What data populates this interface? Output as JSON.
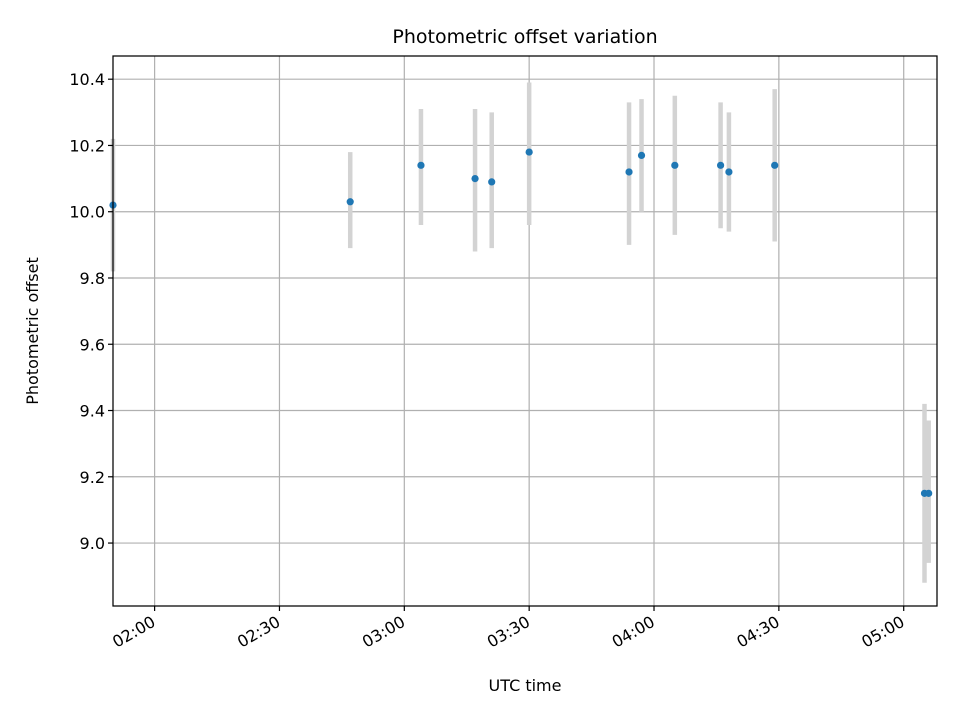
{
  "chart_data": {
    "type": "scatter",
    "title": "Photometric offset variation",
    "xlabel": "UTC time",
    "ylabel": "Photometric offset",
    "x_axis_type": "time",
    "xlim": [
      "01:50",
      "05:08"
    ],
    "ylim": [
      8.81,
      10.47
    ],
    "x_ticks": [
      "02:00",
      "02:30",
      "03:00",
      "03:30",
      "04:00",
      "04:30",
      "05:00"
    ],
    "y_ticks": [
      9.0,
      9.2,
      9.4,
      9.6,
      9.8,
      10.0,
      10.2,
      10.4
    ],
    "y_tick_labels": [
      "9.0",
      "9.2",
      "9.4",
      "9.6",
      "9.8",
      "10.0",
      "10.2",
      "10.4"
    ],
    "grid": true,
    "colors": {
      "point": "#1f77b4",
      "errorbar": "#d3d3d3",
      "grid": "#b0b0b0",
      "axis": "#000000"
    },
    "series": [
      {
        "points": [
          {
            "x": "01:50",
            "y": 10.02,
            "y_low": 9.82,
            "y_high": 10.22
          },
          {
            "x": "02:47",
            "y": 10.03,
            "y_low": 9.89,
            "y_high": 10.18
          },
          {
            "x": "03:04",
            "y": 10.14,
            "y_low": 9.96,
            "y_high": 10.31
          },
          {
            "x": "03:17",
            "y": 10.1,
            "y_low": 9.88,
            "y_high": 10.31
          },
          {
            "x": "03:21",
            "y": 10.09,
            "y_low": 9.89,
            "y_high": 10.3
          },
          {
            "x": "03:30",
            "y": 10.18,
            "y_low": 9.96,
            "y_high": 10.39
          },
          {
            "x": "03:54",
            "y": 10.12,
            "y_low": 9.9,
            "y_high": 10.33
          },
          {
            "x": "03:57",
            "y": 10.17,
            "y_low": 10.0,
            "y_high": 10.34
          },
          {
            "x": "04:05",
            "y": 10.14,
            "y_low": 9.93,
            "y_high": 10.35
          },
          {
            "x": "04:16",
            "y": 10.14,
            "y_low": 9.95,
            "y_high": 10.33
          },
          {
            "x": "04:18",
            "y": 10.12,
            "y_low": 9.94,
            "y_high": 10.3
          },
          {
            "x": "04:29",
            "y": 10.14,
            "y_low": 9.91,
            "y_high": 10.37
          },
          {
            "x": "05:05",
            "y": 9.15,
            "y_low": 8.88,
            "y_high": 9.42
          },
          {
            "x": "05:06",
            "y": 9.15,
            "y_low": 8.94,
            "y_high": 9.37
          }
        ]
      }
    ]
  }
}
